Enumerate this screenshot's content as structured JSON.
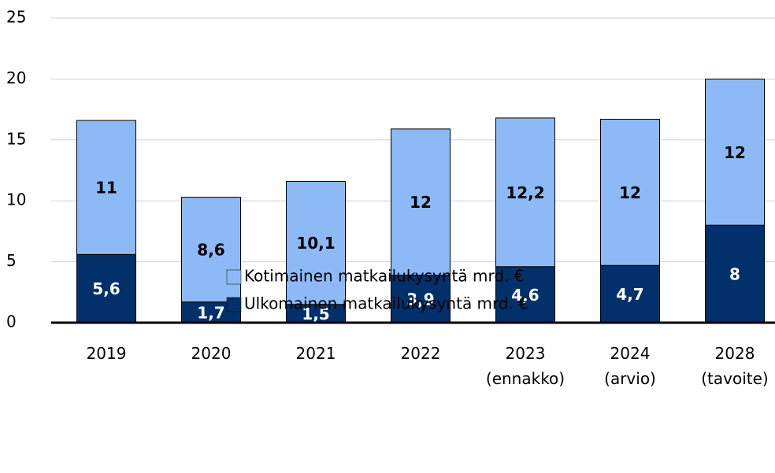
{
  "chart_data": {
    "type": "stacked_bar",
    "categories": [
      "2019",
      "2020",
      "2021",
      "2022",
      "2023\n(ennakko)",
      "2024\n(arvio)",
      "2028\n(tavoite)"
    ],
    "series": [
      {
        "name": "Kotimainen matkailukysyntä mrd. €",
        "color": "#8dbaf6",
        "values": [
          11,
          8.6,
          10.1,
          12,
          12.2,
          12,
          12
        ],
        "value_labels": [
          "11",
          "8,6",
          "10,1",
          "12",
          "12,2",
          "12",
          "12"
        ]
      },
      {
        "name": "Ulkomainen matkailukysyntä mrd. €",
        "color": "#02306a",
        "values": [
          5.6,
          1.7,
          1.5,
          3.9,
          4.6,
          4.7,
          8
        ],
        "value_labels": [
          "5,6",
          "1,7",
          "1,5",
          "3,9",
          "4,6",
          "4,7",
          "8"
        ]
      }
    ],
    "ylim": [
      0,
      25
    ],
    "yticks": [
      0,
      5,
      10,
      15,
      20,
      25
    ],
    "grid": true
  }
}
